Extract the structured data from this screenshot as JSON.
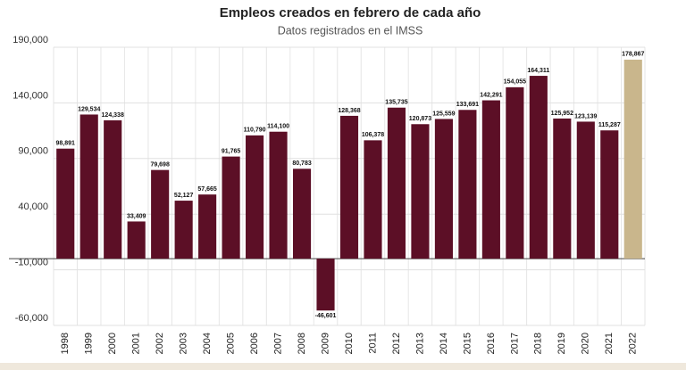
{
  "chart_data": {
    "type": "bar",
    "title": "Empleos creados en febrero de cada año",
    "subtitle": "Datos registrados en el IMSS",
    "categories": [
      "1998",
      "1999",
      "2000",
      "2001",
      "2002",
      "2003",
      "2004",
      "2005",
      "2006",
      "2007",
      "2008",
      "2009",
      "2010",
      "2011",
      "2012",
      "2013",
      "2014",
      "2015",
      "2016",
      "2017",
      "2018",
      "2019",
      "2020",
      "2021",
      "2022"
    ],
    "values": [
      98891,
      129534,
      124338,
      33409,
      79698,
      52127,
      57665,
      91765,
      110790,
      114100,
      80783,
      -46601,
      128368,
      106378,
      135735,
      120873,
      125559,
      133691,
      142291,
      154055,
      164311,
      125952,
      123139,
      115287,
      178867
    ],
    "value_labels": [
      "98,891",
      "129,534",
      "124,338",
      "33,409",
      "79,698",
      "52,127",
      "57,665",
      "91,765",
      "110,790",
      "114,100",
      "80,783",
      "-46,601",
      "128,368",
      "106,378",
      "135,735",
      "120,873",
      "125,559",
      "133,691",
      "142,291",
      "154,055",
      "164,311",
      "125,952",
      "123,139",
      "115,287",
      "178,867"
    ],
    "colors": [
      "#5c0f26",
      "#5c0f26",
      "#5c0f26",
      "#5c0f26",
      "#5c0f26",
      "#5c0f26",
      "#5c0f26",
      "#5c0f26",
      "#5c0f26",
      "#5c0f26",
      "#5c0f26",
      "#5c0f26",
      "#5c0f26",
      "#5c0f26",
      "#5c0f26",
      "#5c0f26",
      "#5c0f26",
      "#5c0f26",
      "#5c0f26",
      "#5c0f26",
      "#5c0f26",
      "#5c0f26",
      "#5c0f26",
      "#5c0f26",
      "#c9b68c"
    ],
    "ylim": [
      -60000,
      190000
    ],
    "yticks": [
      {
        "value": -60000,
        "label": "-60,000"
      },
      {
        "value": -10000,
        "label": "-10,000"
      },
      {
        "value": 40000,
        "label": "40,000"
      },
      {
        "value": 90000,
        "label": "90,000"
      },
      {
        "value": 140000,
        "label": "140,000"
      },
      {
        "value": 190000,
        "label": "190,000"
      }
    ],
    "grid": true
  }
}
